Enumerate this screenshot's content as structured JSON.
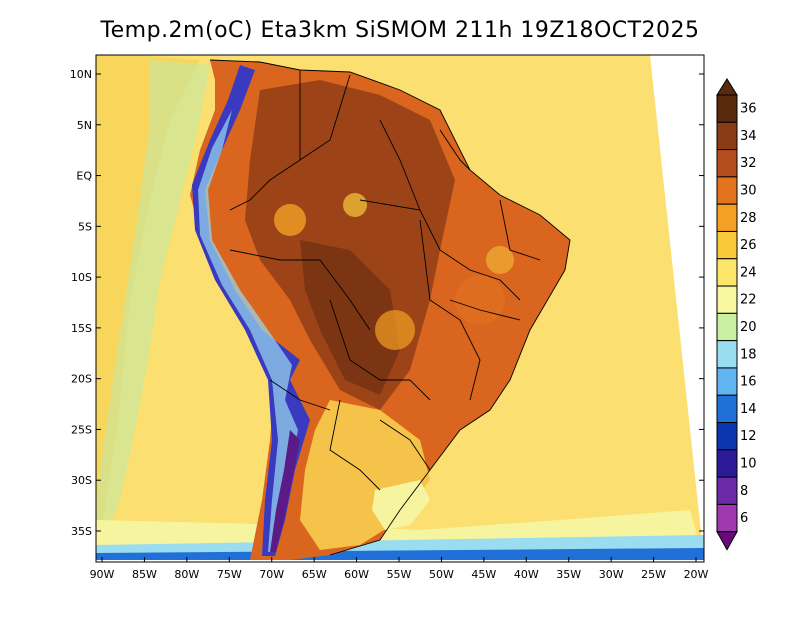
{
  "title": "Temp.2m(oC) Eta3km SiSMOM 211h 19Z18OCT2025",
  "lat_labels": [
    "10N",
    "5N",
    "EQ",
    "5S",
    "10S",
    "15S",
    "20S",
    "25S",
    "30S",
    "35S"
  ],
  "lon_labels": [
    "90W",
    "85W",
    "80W",
    "75W",
    "70W",
    "65W",
    "60W",
    "55W",
    "50W",
    "45W",
    "40W",
    "35W",
    "30W",
    "25W",
    "20W"
  ],
  "colorbar": {
    "labels": [
      "36",
      "34",
      "32",
      "30",
      "28",
      "26",
      "24",
      "22",
      "20",
      "18",
      "16",
      "14",
      "12",
      "10",
      "8",
      "6"
    ],
    "colors": [
      "#5a2a0c",
      "#8b3c14",
      "#b54d1c",
      "#e2731f",
      "#f4a024",
      "#f8c93a",
      "#fbe66a",
      "#f7f7a0",
      "#c8f0a0",
      "#9adcf0",
      "#60b4f0",
      "#2070d8",
      "#0c36b0",
      "#2a1a98",
      "#6a2aa8",
      "#a038b0",
      "#6a0a7a"
    ]
  }
}
